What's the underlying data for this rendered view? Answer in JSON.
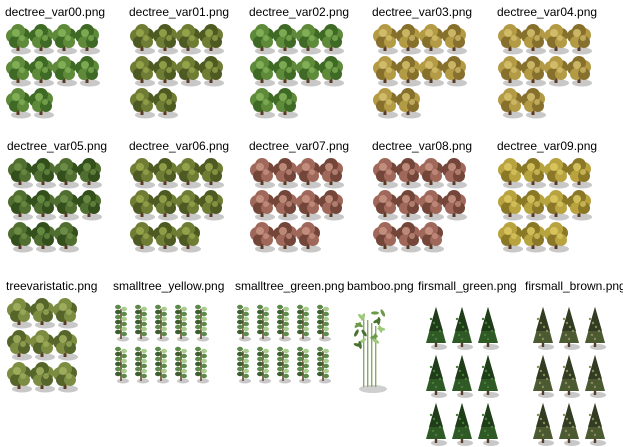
{
  "palettes": {
    "green": [
      "#5e8a3a",
      "#86b45a",
      "#3f6a26"
    ],
    "olive": [
      "#6f7d34",
      "#9aa84e",
      "#4d5a22"
    ],
    "yellow": [
      "#b39a44",
      "#d6c170",
      "#86702c"
    ],
    "gold": [
      "#b8a33e",
      "#dcc862",
      "#8a7826"
    ],
    "pink": [
      "#a0685a",
      "#c99484",
      "#74463a"
    ],
    "dark": [
      "#4f6e30",
      "#6f9248",
      "#33501c"
    ],
    "mix": [
      "#7c8d42",
      "#a2b060",
      "#56662a"
    ],
    "small": [
      "#5d8a4a",
      "#a8cc8c",
      "#3c5e2e"
    ],
    "fir": [
      "#2f5a26",
      "#4a7c3a",
      "#1e3d18"
    ],
    "firbrown": [
      "#4c5a32",
      "#8b8a58",
      "#313c22"
    ],
    "bamboo": [
      "#6c9a48",
      "#9cc878",
      "#48702e"
    ]
  },
  "sheets": [
    {
      "label": "dectree_var00.png",
      "kind": "dec",
      "palette": "green",
      "rows": 3,
      "cols": 4,
      "count": 10
    },
    {
      "label": "dectree_var01.png",
      "kind": "dec",
      "palette": "olive",
      "rows": 3,
      "cols": 4,
      "count": 10
    },
    {
      "label": "dectree_var02.png",
      "kind": "dec",
      "palette": "green",
      "rows": 3,
      "cols": 4,
      "count": 10
    },
    {
      "label": "dectree_var03.png",
      "kind": "dec",
      "palette": "yellow",
      "rows": 3,
      "cols": 4,
      "count": 10
    },
    {
      "label": "dectree_var04.png",
      "kind": "dec",
      "palette": "yellow",
      "rows": 3,
      "cols": 4,
      "count": 10
    },
    {
      "label": "dectree_var05.png",
      "kind": "dec",
      "palette": "dark",
      "rows": 3,
      "cols": 4,
      "count": 11
    },
    {
      "label": "dectree_var06.png",
      "kind": "dec",
      "palette": "olive",
      "rows": 3,
      "cols": 4,
      "count": 11
    },
    {
      "label": "dectree_var07.png",
      "kind": "dec",
      "palette": "pink",
      "rows": 3,
      "cols": 4,
      "count": 11
    },
    {
      "label": "dectree_var08.png",
      "kind": "dec",
      "palette": "pink",
      "rows": 3,
      "cols": 4,
      "count": 11
    },
    {
      "label": "dectree_var09.png",
      "kind": "dec",
      "palette": "gold",
      "rows": 3,
      "cols": 4,
      "count": 11
    },
    {
      "label": "treevaristatic.png",
      "kind": "dec",
      "palette": "mix",
      "rows": 3,
      "cols": 3,
      "count": 9
    },
    {
      "label": "smalltree_yellow.png",
      "kind": "small",
      "palette": "small",
      "rows": 2,
      "cols": 5,
      "count": 10
    },
    {
      "label": "smalltree_green.png",
      "kind": "small",
      "palette": "small",
      "rows": 2,
      "cols": 5,
      "count": 10
    },
    {
      "label": "bamboo.png",
      "kind": "bamboo",
      "palette": "bamboo",
      "rows": 1,
      "cols": 1,
      "count": 1
    },
    {
      "label": "firsmall_green.png",
      "kind": "fir",
      "palette": "fir",
      "rows": 3,
      "cols": 3,
      "count": 9
    },
    {
      "label": "firsmall_brown.png",
      "kind": "fir",
      "palette": "firbrown",
      "rows": 3,
      "cols": 3,
      "count": 9
    }
  ]
}
